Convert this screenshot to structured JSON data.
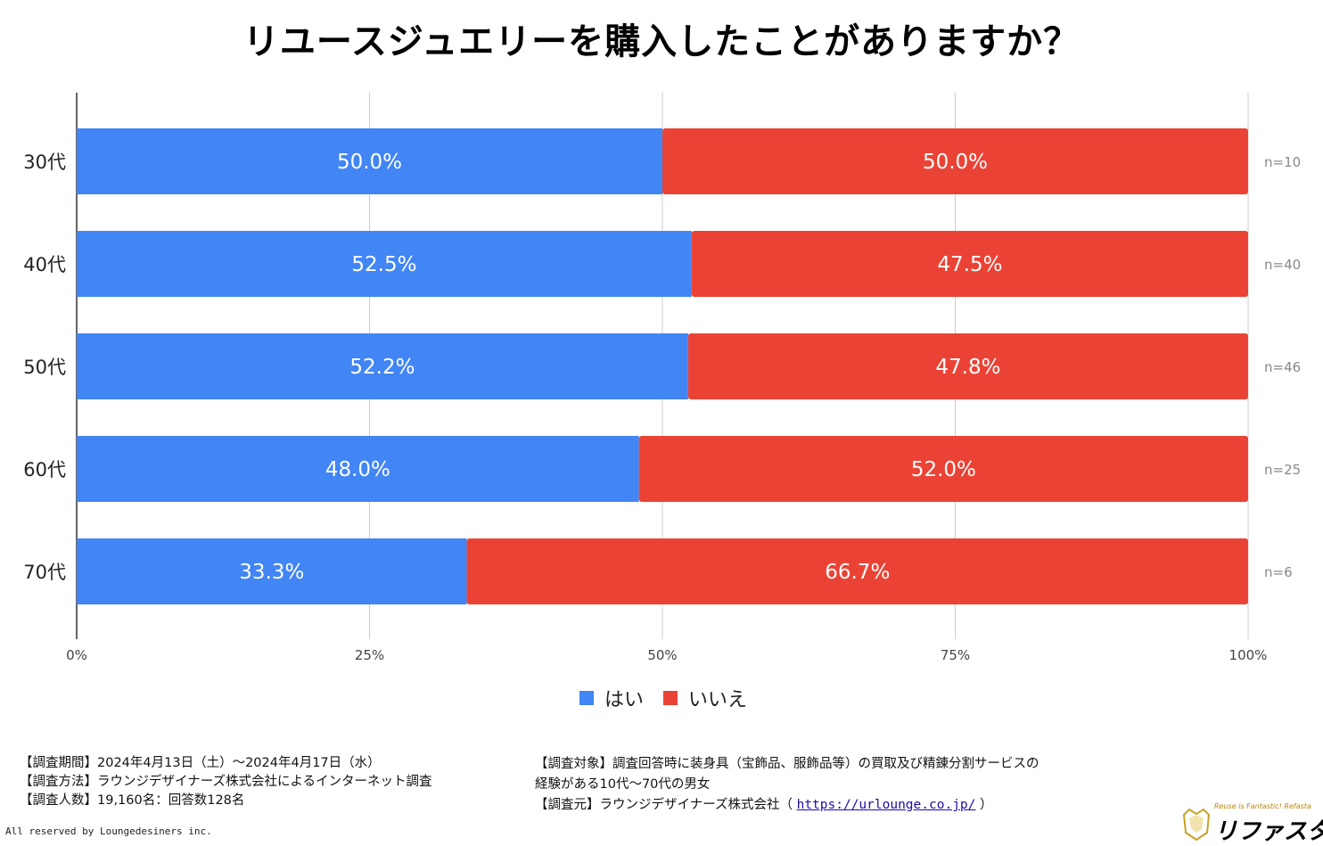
{
  "chart_data": {
    "type": "bar",
    "orientation": "horizontal-stacked-100",
    "title": "リユースジュエリーを購入したことがありますか？",
    "categories": [
      "30代",
      "40代",
      "50代",
      "60代",
      "70代"
    ],
    "series": [
      {
        "name": "はい",
        "color": "#4285f4",
        "values": [
          50.0,
          52.5,
          52.2,
          48.0,
          33.3
        ],
        "labels": [
          "50.0%",
          "52.5%",
          "52.2%",
          "48.0%",
          "33.3%"
        ]
      },
      {
        "name": "いいえ",
        "color": "#ea4335",
        "values": [
          50.0,
          47.5,
          47.8,
          52.0,
          66.7
        ],
        "labels": [
          "50.0%",
          "47.5%",
          "47.8%",
          "52.0%",
          "66.7%"
        ]
      }
    ],
    "sample_sizes": [
      "n=10",
      "n=40",
      "n=46",
      "n=25",
      "n=6"
    ],
    "xlim": [
      0,
      100
    ],
    "xticks": [
      "0%",
      "25%",
      "50%",
      "75%",
      "100%"
    ],
    "grid": true,
    "legend": "bottom-center"
  },
  "footer": {
    "left_lines": [
      "【調査期間】2024年4月13日（土）～2024年4月17日（水）",
      "【調査方法】ラウンジデザイナーズ株式会社によるインターネット調査",
      "【調査人数】19,160名：回答数128名"
    ],
    "target_line1": "【調査対象】調査回答時に装身具（宝飾品、服飾品等）の買取及び精錬分割サービスの",
    "target_line2": "経験がある10代～70代の男女",
    "source_prefix": "【調査元】ラウンジデザイナーズ株式会社（",
    "source_url": "https://urlounge.co.jp/",
    "source_suffix": "）"
  },
  "copyright": "All reserved by Loungedesiners inc.",
  "logo": {
    "tagline": "Reuse is Fantastic! Refasta",
    "brand": "リファスタ"
  }
}
